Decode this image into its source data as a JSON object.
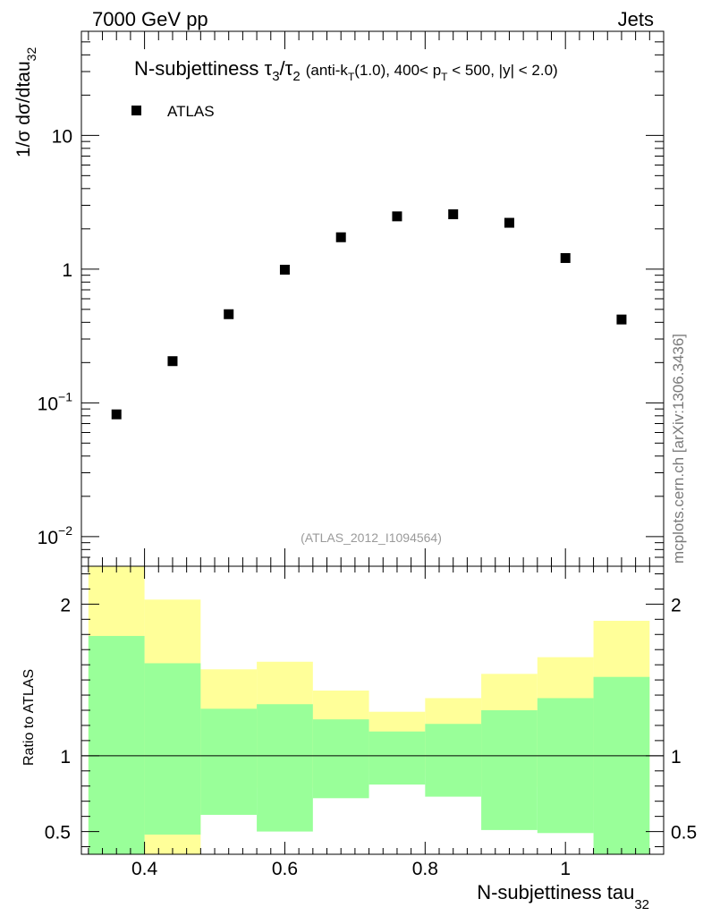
{
  "header": {
    "energy": "7000 GeV pp",
    "process": "Jets"
  },
  "watermark": "mcplots.cern.ch [arXiv:1306.3436]",
  "analysis_tag": "(ATLAS_2012_I1094564)",
  "chart_data": [
    {
      "type": "scatter",
      "title_main": "N-subjettiness τ",
      "title_sub3": "3",
      "title_slash": "/τ",
      "title_sub2": "2",
      "title_cuts_a": "(anti-k",
      "title_cuts_t": "T",
      "title_cuts_b": "(1.0), 400< p",
      "title_cuts_t2": "T",
      "title_cuts_c": " < 500, |y| < 2.0)",
      "ylabel_main": "1/σ dσ/dtau",
      "ylabel_sub": "32",
      "yscale": "log",
      "ylim": [
        0.006,
        60
      ],
      "xlim": [
        0.31,
        1.14
      ],
      "y_ticks": [
        {
          "value": 0.01,
          "base": "10",
          "exp": "−2"
        },
        {
          "value": 0.1,
          "base": "10",
          "exp": "−1"
        },
        {
          "value": 1,
          "label": "1"
        },
        {
          "value": 10,
          "label": "10"
        }
      ],
      "legend": {
        "position": "top-left",
        "entries": [
          "ATLAS"
        ]
      },
      "series": [
        {
          "name": "ATLAS",
          "x": [
            0.36,
            0.44,
            0.52,
            0.6,
            0.68,
            0.76,
            0.84,
            0.92,
            1.0,
            1.08
          ],
          "y": [
            0.082,
            0.205,
            0.46,
            0.99,
            1.73,
            2.48,
            2.57,
            2.22,
            1.21,
            0.42
          ]
        }
      ]
    },
    {
      "type": "area",
      "ylabel": "Ratio to ATLAS",
      "ylim": [
        0.35,
        2.25
      ],
      "xlim": [
        0.31,
        1.14
      ],
      "xlabel_main": "N-subjettiness tau",
      "xlabel_sub": "32",
      "x_ticks": [
        {
          "value": 0.4,
          "label": "0.4"
        },
        {
          "value": 0.6,
          "label": "0.6"
        },
        {
          "value": 0.8,
          "label": "0.8"
        },
        {
          "value": 1.0,
          "label": "1"
        }
      ],
      "y_ticks": [
        {
          "value": 0.5,
          "label": "0.5"
        },
        {
          "value": 1,
          "label": "1"
        },
        {
          "value": 2,
          "label": "2"
        }
      ],
      "reference_line": 1,
      "bin_edges": [
        0.32,
        0.4,
        0.48,
        0.56,
        0.64,
        0.72,
        0.8,
        0.88,
        0.96,
        1.04,
        1.12
      ],
      "band_outer": {
        "color": "#ffff99",
        "lo": [
          0.35,
          0.35,
          0.83,
          0.79,
          0.87,
          0.91,
          0.87,
          0.8,
          0.79,
          0.64
        ],
        "hi": [
          2.25,
          2.03,
          1.57,
          1.62,
          1.43,
          1.29,
          1.38,
          1.54,
          1.65,
          1.89
        ]
      },
      "band_inner": {
        "color": "#99ff99",
        "lo": [
          0.35,
          0.48,
          0.61,
          0.5,
          0.72,
          0.81,
          0.73,
          0.51,
          0.49,
          0.35
        ],
        "hi": [
          1.79,
          1.61,
          1.31,
          1.34,
          1.24,
          1.16,
          1.21,
          1.3,
          1.38,
          1.52
        ]
      }
    }
  ]
}
